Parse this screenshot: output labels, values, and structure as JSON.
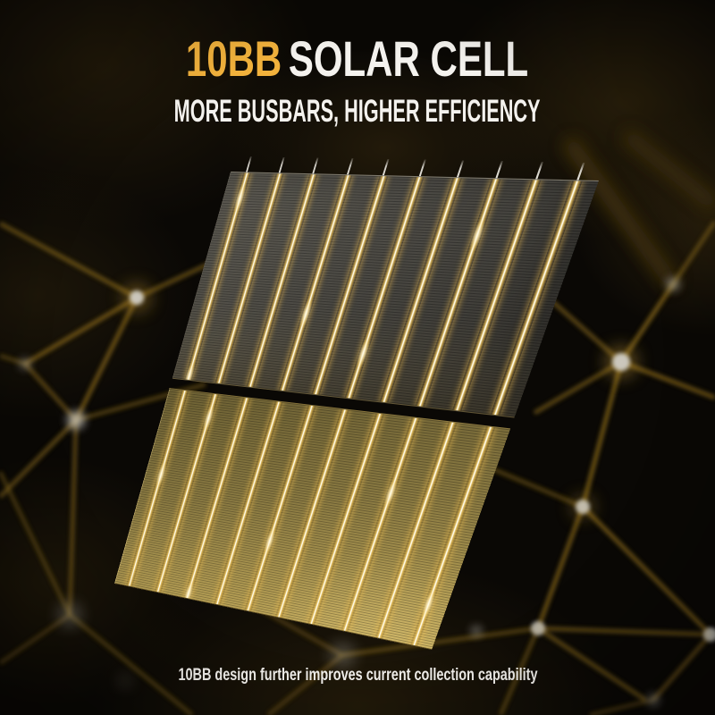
{
  "header": {
    "title": {
      "highlight": "10BB",
      "rest": "SOLAR CELL"
    },
    "subtitle": "MORE BUSBARS, HIGHER EFFICIENCY"
  },
  "hero": {
    "label": "10BB solar cell with glowing busbars",
    "busbar_count": 10,
    "cell_count": 2
  },
  "footer": {
    "caption": "10BB design further improves current collection capability"
  },
  "colors": {
    "accent_yellow": "#F2B23C",
    "text_white": "#F4F2EE",
    "busbar_core": "#FFFDF0",
    "busbar_glow": "#E9C258",
    "cell_top_gray": "#4F4D47",
    "cell_bottom_gold": "#A9924F",
    "network_gold": "#8A6A1C",
    "node_gray": "#CFCCC4",
    "background": "#0A0805"
  }
}
